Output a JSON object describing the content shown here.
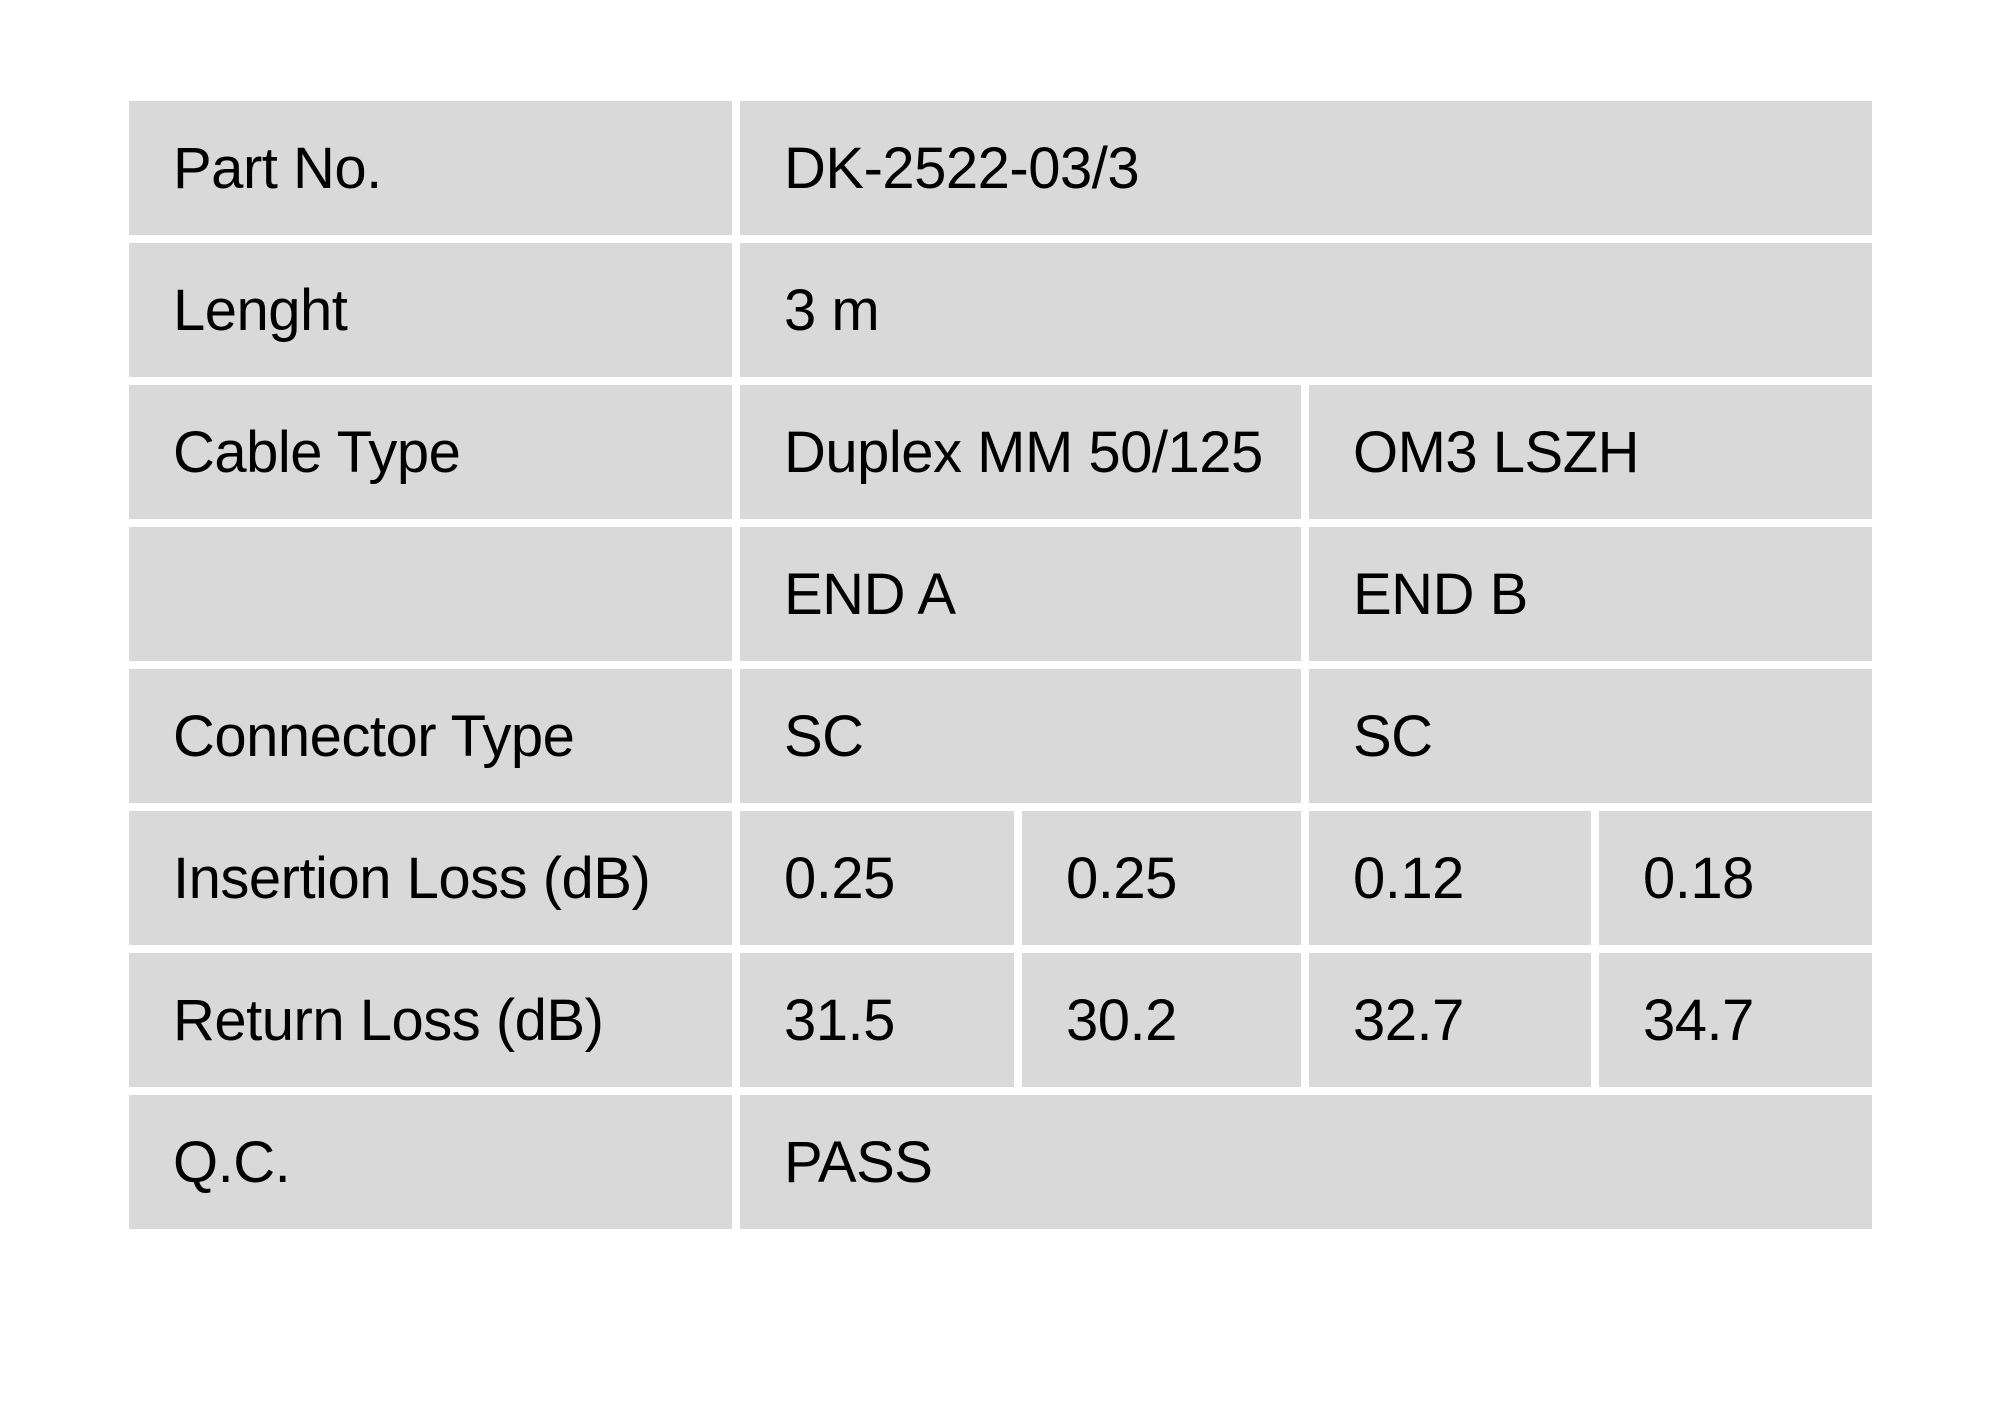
{
  "colors": {
    "page_bg": "#ffffff",
    "cell_bg": "#d9d9d9",
    "text": "#000000"
  },
  "table": {
    "rows": [
      {
        "label": "Part No.",
        "value": "DK-2522-03/3"
      },
      {
        "label": "Lenght",
        "value": "3 m"
      },
      {
        "label": "Cable Type",
        "end_a": "Duplex MM 50/125",
        "end_b": "OM3 LSZH"
      },
      {
        "label": "",
        "end_a": "END A",
        "end_b": "END B"
      },
      {
        "label": "Connector Type",
        "end_a": "SC",
        "end_b": "SC"
      },
      {
        "label": "Insertion Loss (dB)",
        "values": [
          "0.25",
          "0.25",
          "0.12",
          "0.18"
        ]
      },
      {
        "label": "Return Loss (dB)",
        "values": [
          "31.5",
          "30.2",
          "32.7",
          "34.7"
        ]
      },
      {
        "label": "Q.C.",
        "value": "PASS"
      }
    ]
  }
}
